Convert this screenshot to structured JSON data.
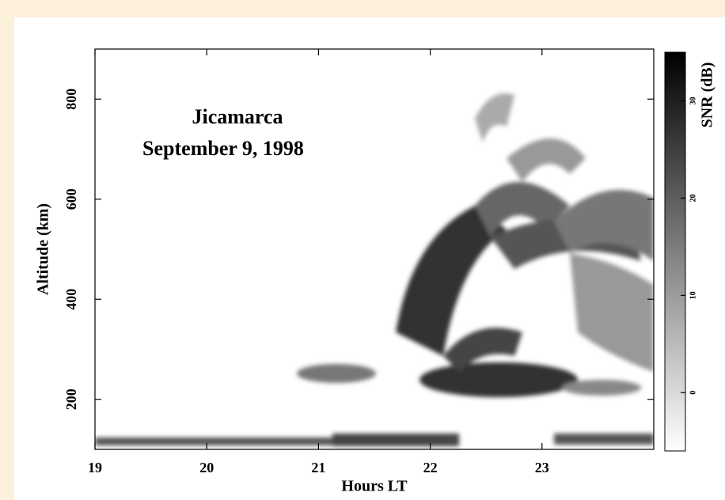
{
  "chart_data": {
    "type": "rti",
    "annotation": [
      "Jicamarca",
      "September 9,  1998"
    ],
    "xlabel": "Hours LT",
    "ylabel": "Altitude (km)",
    "xlim": [
      19,
      24
    ],
    "xticks": [
      19,
      20,
      21,
      22,
      23
    ],
    "ylim": [
      100,
      900
    ],
    "yticks": [
      200,
      400,
      600,
      800
    ],
    "colorbar": {
      "label": "SNR (dB)",
      "lim": [
        -6,
        35
      ],
      "ticks": [
        0,
        10,
        20,
        30
      ]
    }
  }
}
